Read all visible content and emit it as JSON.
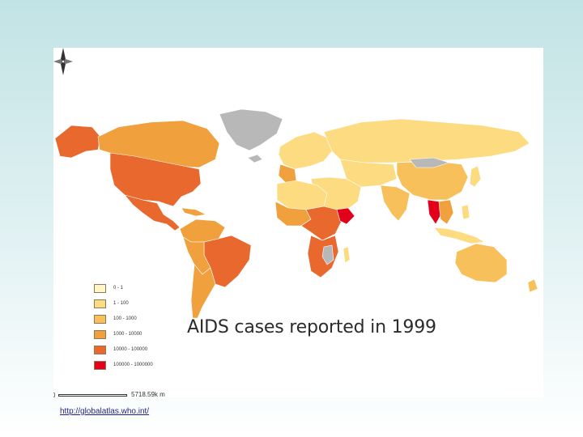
{
  "map": {
    "title": "AIDS cases reported in 1999",
    "no_data_color": "#b8b8b8",
    "legend": [
      {
        "label": "0 - 1",
        "color": "#fff6c8"
      },
      {
        "label": "1 - 100",
        "color": "#fddb80"
      },
      {
        "label": "100 - 1000",
        "color": "#f7c05a"
      },
      {
        "label": "1000 - 10000",
        "color": "#f0a03c"
      },
      {
        "label": "10000 - 100000",
        "color": "#e8682e"
      },
      {
        "label": "100000 - 1000000",
        "color": "#e3001a"
      }
    ],
    "scale": {
      "start": "0",
      "end": "5718.59k m"
    }
  },
  "footer": {
    "source_url": "http://globalatlas.who.int/"
  }
}
